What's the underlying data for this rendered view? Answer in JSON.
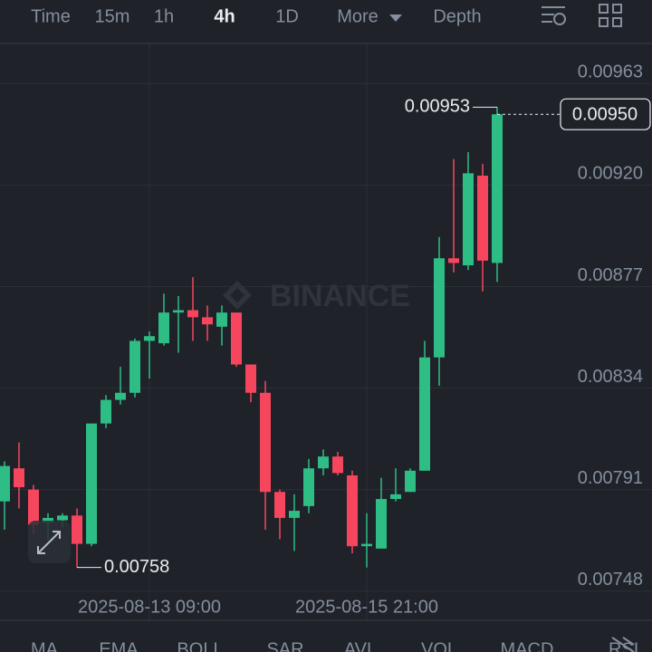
{
  "toolbar": {
    "tabs": [
      "Time",
      "15m",
      "1h",
      "4h",
      "1D",
      "More",
      "Depth"
    ],
    "active_index": 3
  },
  "watermark": "BINANCE",
  "indicators": [
    "MA",
    "EMA",
    "BOLL",
    "SAR",
    "AVL",
    "VOL",
    "MACD",
    "RSI"
  ],
  "chart_data": {
    "type": "candlestick",
    "categories": [
      null,
      null,
      null,
      null,
      null,
      null,
      null,
      null,
      null,
      null,
      "2025-08-13 09:00",
      null,
      null,
      null,
      null,
      null,
      null,
      null,
      null,
      null,
      null,
      null,
      null,
      null,
      null,
      "2025-08-15 21:00",
      null,
      null,
      null,
      null,
      null,
      null,
      null,
      null,
      null
    ],
    "open": [
      0.00786,
      0.008,
      0.00791,
      0.00777,
      0.00778,
      0.0078,
      0.00768,
      0.00819,
      0.00829,
      0.00832,
      0.00854,
      0.00853,
      0.00866,
      0.00867,
      0.00864,
      0.0086,
      0.00866,
      0.00844,
      0.00832,
      0.0079,
      0.00779,
      0.00784,
      0.008,
      0.00805,
      0.00797,
      0.00767,
      0.00766,
      0.00787,
      0.0079,
      0.00799,
      0.00847,
      0.00889,
      0.00886,
      0.00924,
      0.00887
    ],
    "high": [
      0.00803,
      0.00811,
      0.00793,
      0.00781,
      0.00781,
      0.00783,
      0.00819,
      0.00831,
      0.00843,
      0.00855,
      0.00858,
      0.00874,
      0.00873,
      0.00881,
      0.00869,
      0.00869,
      0.00866,
      0.00844,
      0.00837,
      0.00791,
      0.00789,
      0.00804,
      0.00808,
      0.00807,
      0.00799,
      0.00781,
      0.00796,
      0.008,
      0.008,
      0.00854,
      0.00898,
      0.00931,
      0.00934,
      0.00929,
      0.00953
    ],
    "low": [
      0.00774,
      0.00783,
      0.00772,
      0.0077,
      0.00775,
      0.00758,
      0.00767,
      0.00817,
      0.00827,
      0.0083,
      0.00838,
      0.00852,
      0.00849,
      0.00854,
      0.00854,
      0.00852,
      0.00843,
      0.00828,
      0.00774,
      0.0077,
      0.00765,
      0.00781,
      0.00797,
      0.00797,
      0.00764,
      0.00758,
      0.00766,
      0.00786,
      0.0079,
      0.00799,
      0.00835,
      0.00883,
      0.00884,
      0.00875,
      0.00879
    ],
    "close": [
      0.00801,
      0.00792,
      0.00776,
      0.00779,
      0.0078,
      0.00768,
      0.00819,
      0.00829,
      0.00832,
      0.00854,
      0.00856,
      0.00866,
      0.00867,
      0.00864,
      0.00861,
      0.00866,
      0.00844,
      0.00832,
      0.0079,
      0.00779,
      0.00782,
      0.008,
      0.00805,
      0.00798,
      0.00767,
      0.00768,
      0.00787,
      0.00789,
      0.00799,
      0.00847,
      0.00889,
      0.00887,
      0.00925,
      0.00888,
      0.0095
    ],
    "colors": {
      "up": "#2ebd85",
      "down": "#f6465d"
    },
    "ylim": [
      0.00736,
      0.0098
    ],
    "yticks": [
      0.00748,
      0.00791,
      0.00834,
      0.00877,
      {
        "value": 0.0092,
        "label": "0.00920"
      },
      0.00963
    ],
    "grid": true,
    "max_label": 0.00953,
    "min_label": 0.00758,
    "last_price": {
      "value": 0.0095,
      "label": "0.00950"
    }
  }
}
